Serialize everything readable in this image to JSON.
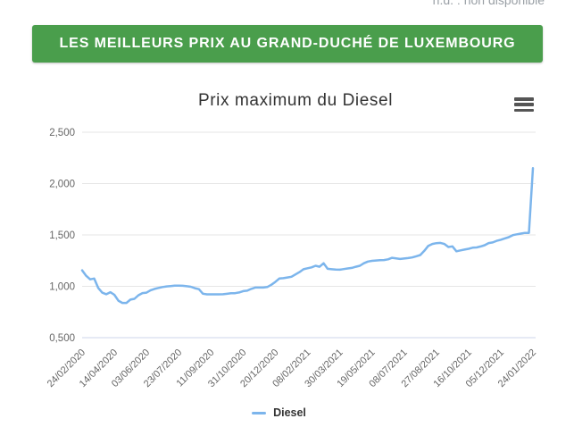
{
  "note": {
    "text": "n.d. : non disponible"
  },
  "banner": {
    "label": "LES MEILLEURS PRIX AU GRAND-DUCHÉ DE LUXEMBOURG",
    "bg_color": "#4a9e4c",
    "text_color": "#ffffff"
  },
  "chart_data": {
    "type": "line",
    "title": "Prix maximum du Diesel",
    "xlabel": "",
    "ylabel": "",
    "grid": true,
    "legend_position": "bottom-center",
    "ylim": [
      0.5,
      2.5
    ],
    "y_ticks": [
      {
        "value": 0.5,
        "label": "0,500"
      },
      {
        "value": 1.0,
        "label": "1,000"
      },
      {
        "value": 1.5,
        "label": "1,500"
      },
      {
        "value": 2.0,
        "label": "2,000"
      },
      {
        "value": 2.5,
        "label": "2,500"
      }
    ],
    "x_tick_labels": [
      "24/02/2020",
      "14/04/2020",
      "03/06/2020",
      "23/07/2020",
      "11/09/2020",
      "31/10/2020",
      "20/12/2020",
      "08/02/2021",
      "30/03/2021",
      "19/05/2021",
      "08/07/2021",
      "27/08/2021",
      "16/10/2021",
      "05/12/2021",
      "24/01/2022"
    ],
    "series": [
      {
        "name": "Diesel",
        "color": "#7cb5ec",
        "values": [
          1.156,
          1.103,
          1.068,
          1.076,
          0.984,
          0.938,
          0.923,
          0.943,
          0.917,
          0.86,
          0.838,
          0.838,
          0.87,
          0.878,
          0.913,
          0.934,
          0.938,
          0.962,
          0.975,
          0.984,
          0.993,
          0.999,
          1.003,
          1.007,
          1.007,
          1.005,
          1.001,
          0.996,
          0.982,
          0.972,
          0.928,
          0.922,
          0.922,
          0.922,
          0.922,
          0.923,
          0.927,
          0.932,
          0.933,
          0.94,
          0.953,
          0.957,
          0.975,
          0.988,
          0.988,
          0.988,
          0.993,
          1.015,
          1.043,
          1.076,
          1.079,
          1.086,
          1.093,
          1.116,
          1.138,
          1.166,
          1.176,
          1.184,
          1.2,
          1.19,
          1.224,
          1.17,
          1.166,
          1.163,
          1.162,
          1.168,
          1.174,
          1.179,
          1.19,
          1.2,
          1.224,
          1.241,
          1.248,
          1.251,
          1.254,
          1.256,
          1.263,
          1.277,
          1.272,
          1.266,
          1.27,
          1.275,
          1.281,
          1.292,
          1.304,
          1.345,
          1.394,
          1.412,
          1.42,
          1.423,
          1.412,
          1.383,
          1.389,
          1.341,
          1.35,
          1.357,
          1.365,
          1.376,
          1.378,
          1.388,
          1.4,
          1.421,
          1.427,
          1.443,
          1.453,
          1.466,
          1.478,
          1.498,
          1.506,
          1.513,
          1.52,
          1.52,
          2.15
        ]
      }
    ],
    "colors": {
      "grid": "#e6e6e6",
      "axis_line": "#ccd6eb",
      "tick_label": "#666666",
      "title": "#333333"
    }
  }
}
